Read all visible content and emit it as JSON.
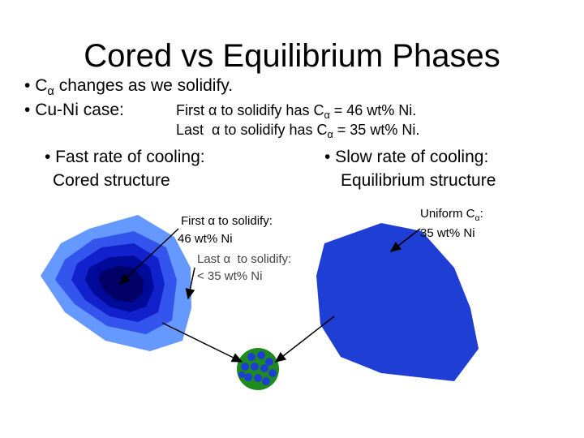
{
  "title": "Cored vs Equilibrium Phases",
  "bullets": [
    {
      "pre": "C",
      "sub": "α",
      "post": " changes as we solidify."
    },
    {
      "label": "Cu-Ni case:",
      "lines": [
        {
          "pre": "First α to solidify has C",
          "sub": "α",
          "post": " = 46 wt% Ni."
        },
        {
          "pre": "Last  α to solidify has C",
          "sub": "α",
          "post": " = 35 wt% Ni."
        }
      ]
    }
  ],
  "left": {
    "heading": "• Fast rate of cooling:",
    "subheading": "Cored structure",
    "first_label": [
      "First α to solidify:",
      "46 wt% Ni"
    ],
    "last_label": [
      "Last α  to solidify:",
      "< 35 wt% Ni"
    ]
  },
  "right": {
    "heading": "• Slow rate of cooling:",
    "subheading": "Equilibrium structure",
    "uniform_label": {
      "pre": "Uniform C",
      "sub": "α",
      "post": ":",
      "line2": "35 wt% Ni"
    }
  }
}
